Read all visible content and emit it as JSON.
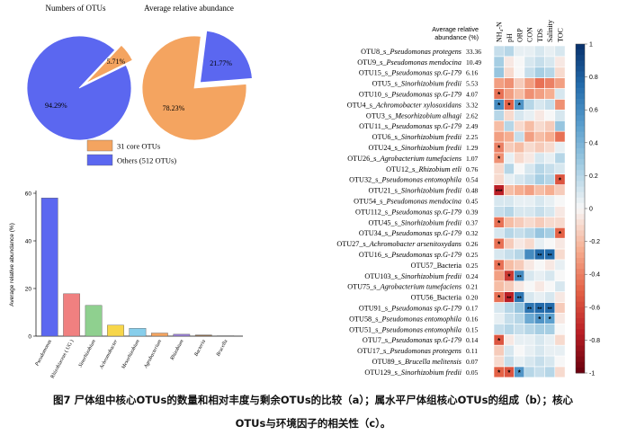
{
  "chart_data": [
    {
      "type": "pie",
      "title": "Numbers of OTUs",
      "slices": [
        {
          "label": "31 core OTUs",
          "value": 5.71,
          "value_label": "5.71%",
          "color": "#F4A460"
        },
        {
          "label": "Others (512 OTUs)",
          "value": 94.29,
          "value_label": "94.29%",
          "color": "#5B67F0"
        }
      ]
    },
    {
      "type": "pie",
      "title": "Average relative abundance",
      "slices": [
        {
          "label": "31 core OTUs",
          "value": 78.23,
          "value_label": "78.23%",
          "color": "#F4A460"
        },
        {
          "label": "Others (512 OTUs)",
          "value": 21.77,
          "value_label": "21.77%",
          "color": "#5B67F0"
        }
      ],
      "legend": [
        "31 core OTUs",
        "Others (512 OTUs)"
      ]
    },
    {
      "type": "bar",
      "ylabel": "Average relative abundance (%)",
      "ylim": [
        0,
        60
      ],
      "yticks": [
        "0",
        "20",
        "40",
        "60"
      ],
      "categories": [
        "Pseudomonas",
        "Rhizobiaceae ( UG )",
        "Sinorhizobium",
        "Achromobacter",
        "Mesorhizobium",
        "Agrobacterium",
        "Rhizobium",
        "Bacteria",
        "Brucella"
      ],
      "values": [
        58.0,
        17.8,
        12.9,
        4.6,
        3.3,
        1.3,
        0.8,
        0.5,
        0.2
      ],
      "colors": [
        "#5B67F0",
        "#F08080",
        "#8FD08F",
        "#F7D64A",
        "#87CEEB",
        "#F4A460",
        "#9A7FD8",
        "#8B6B4A",
        "#CCCCCC"
      ]
    },
    {
      "type": "heatmap",
      "corner_label": [
        "Average relative",
        "abundance (%)"
      ],
      "columns": [
        "NH₄-N",
        "pH",
        "ORP",
        "CON",
        "TDS",
        "Salinity",
        "TOC"
      ],
      "colorbar": {
        "min": -1,
        "max": 1,
        "ticks": [
          "1",
          "0.8",
          "0.6",
          "0.4",
          "0.2",
          "0",
          "-0.2",
          "-0.4",
          "-0.6",
          "-0.8",
          "-1"
        ]
      },
      "rows": [
        {
          "otu": "OTU8_s_",
          "taxon": "Pseudomonas protegens",
          "abund": "33.36",
          "r": [
            0.15,
            0.2,
            0.05,
            0.05,
            0.1,
            0.05,
            0.1
          ],
          "sig": [
            "",
            "",
            "",
            "",
            "",
            "",
            ""
          ]
        },
        {
          "otu": "OTU9_s_",
          "taxon": "Pseudomonas mendocina",
          "abund": "10.49",
          "r": [
            0.25,
            -0.05,
            0.0,
            0.1,
            0.15,
            0.1,
            -0.05
          ],
          "sig": [
            "",
            "",
            "",
            "",
            "",
            "",
            ""
          ]
        },
        {
          "otu": "OTU15_s_",
          "taxon": "Pseudomonas sp.G-179",
          "abund": "6.16",
          "r": [
            0.3,
            -0.1,
            0.0,
            0.15,
            0.25,
            0.2,
            -0.1
          ],
          "sig": [
            "",
            "",
            "",
            "",
            "",
            "",
            ""
          ]
        },
        {
          "otu": "OTU5_s_",
          "taxon": "Sinorhizobium fredii",
          "abund": "5.53",
          "r": [
            -0.3,
            -0.35,
            -0.15,
            -0.3,
            -0.45,
            -0.4,
            -0.3
          ],
          "sig": [
            "",
            "",
            "",
            "",
            "",
            "",
            ""
          ]
        },
        {
          "otu": "OTU10_s_",
          "taxon": "Pseudomonas sp.G-179",
          "abund": "4.07",
          "r": [
            -0.45,
            -0.3,
            -0.2,
            -0.35,
            -0.3,
            -0.25,
            0.1
          ],
          "sig": [
            "*",
            "",
            "",
            "",
            "",
            "",
            ""
          ]
        },
        {
          "otu": "OTU4_s_",
          "taxon": "Achromobacter xylosoxidans",
          "abund": "3.32",
          "r": [
            0.6,
            -0.5,
            0.55,
            0.2,
            0.1,
            0.15,
            -0.35
          ],
          "sig": [
            "*",
            "*",
            "*",
            "",
            "",
            "",
            ""
          ]
        },
        {
          "otu": "OTU3_s_",
          "taxon": "Mesorhizobium alhagi",
          "abund": "2.62",
          "r": [
            0.2,
            -0.1,
            0.1,
            0.05,
            -0.05,
            0.0,
            0.1
          ],
          "sig": [
            "",
            "",
            "",
            "",
            "",
            "",
            ""
          ]
        },
        {
          "otu": "OTU11_s_",
          "taxon": "Pseudomonas sp.G-179",
          "abund": "2.49",
          "r": [
            -0.2,
            0.2,
            -0.1,
            -0.2,
            -0.1,
            -0.15,
            0.3
          ],
          "sig": [
            "",
            "",
            "",
            "",
            "",
            "",
            ""
          ]
        },
        {
          "otu": "OTU6_s_",
          "taxon": "Sinorhizobium fredii",
          "abund": "2.25",
          "r": [
            -0.3,
            -0.25,
            0.15,
            -0.3,
            -0.2,
            -0.25,
            -0.45
          ],
          "sig": [
            "",
            "",
            "",
            "",
            "",
            "",
            ""
          ]
        },
        {
          "otu": "OTU24_s_",
          "taxon": "Sinorhizobium fredii",
          "abund": "1.29",
          "r": [
            -0.4,
            -0.15,
            -0.2,
            -0.1,
            -0.15,
            -0.1,
            0.05
          ],
          "sig": [
            "*",
            "",
            "",
            "",
            "",
            "",
            ""
          ]
        },
        {
          "otu": "OTU26_s_",
          "taxon": "Agrobacterium tumefaciens",
          "abund": "1.07",
          "r": [
            -0.35,
            0.05,
            -0.1,
            -0.05,
            0.1,
            0.05,
            0.2
          ],
          "sig": [
            "*",
            "",
            "",
            "",
            "",
            "",
            ""
          ]
        },
        {
          "otu": "OTU12_s_",
          "taxon": "Rhizobium etli",
          "abund": "0.76",
          "r": [
            -0.1,
            0.2,
            0.0,
            0.1,
            0.2,
            0.15,
            0.1
          ],
          "sig": [
            "",
            "",
            "",
            "",
            "",
            "",
            ""
          ]
        },
        {
          "otu": "OTU32_s_",
          "taxon": "Pseudomonas entomophila",
          "abund": "0.54",
          "r": [
            -0.1,
            0.05,
            0.1,
            0.15,
            0.25,
            0.2,
            -0.55
          ],
          "sig": [
            "",
            "",
            "",
            "",
            "",
            "",
            "*"
          ]
        },
        {
          "otu": "OTU21_s_",
          "taxon": "Sinorhizobium fredii",
          "abund": "0.48",
          "r": [
            -0.75,
            -0.2,
            -0.25,
            -0.3,
            -0.2,
            -0.25,
            -0.15
          ],
          "sig": [
            "***",
            "",
            "",
            "",
            "",
            "",
            ""
          ]
        },
        {
          "otu": "OTU54_s_",
          "taxon": "Pseudomonas mendocina",
          "abund": "0.45",
          "r": [
            0.1,
            0.1,
            0.05,
            0.05,
            0.1,
            0.05,
            0.0
          ],
          "sig": [
            "",
            "",
            "",
            "",
            "",
            "",
            ""
          ]
        },
        {
          "otu": "OTU112_s_",
          "taxon": "Pseudomonas sp.G-179",
          "abund": "0.39",
          "r": [
            0.15,
            0.2,
            0.1,
            0.1,
            0.15,
            0.1,
            -0.05
          ],
          "sig": [
            "",
            "",
            "",
            "",
            "",
            "",
            ""
          ]
        },
        {
          "otu": "OTU45_s_",
          "taxon": "Sinorhizobium fredii",
          "abund": "0.37",
          "r": [
            -0.45,
            -0.2,
            -0.15,
            -0.1,
            -0.15,
            -0.1,
            -0.1
          ],
          "sig": [
            "*",
            "",
            "",
            "",
            "",
            "",
            ""
          ]
        },
        {
          "otu": "OTU34_s_",
          "taxon": "Pseudomonas sp.G-179",
          "abund": "0.32",
          "r": [
            0.1,
            0.2,
            0.15,
            0.2,
            0.3,
            0.25,
            -0.5
          ],
          "sig": [
            "",
            "",
            "",
            "",
            "",
            "",
            "*"
          ]
        },
        {
          "otu": "OTU27_s_",
          "taxon": "Achromobacter arsenitoxydans",
          "abund": "0.26",
          "r": [
            -0.45,
            -0.15,
            -0.05,
            -0.1,
            0.05,
            0.0,
            -0.05
          ],
          "sig": [
            "*",
            "",
            "",
            "",
            "",
            "",
            ""
          ]
        },
        {
          "otu": "OTU16_s_",
          "taxon": "Pseudomonas sp.G-179",
          "abund": "0.25",
          "r": [
            0.1,
            0.15,
            0.2,
            0.6,
            0.75,
            0.75,
            -0.1
          ],
          "sig": [
            "",
            "",
            "",
            "",
            "**",
            "**",
            ""
          ]
        },
        {
          "otu": "OTU57_",
          "taxon": "Bacteria",
          "abund": "0.25",
          "r": [
            -0.45,
            -0.2,
            -0.15,
            -0.05,
            0.0,
            -0.05,
            0.05
          ],
          "sig": [
            "*",
            "",
            "",
            "",
            "",
            "",
            ""
          ]
        },
        {
          "otu": "OTU103_s_",
          "taxon": "Sinorhizobium fredii",
          "abund": "0.24",
          "r": [
            -0.3,
            -0.65,
            0.6,
            0.1,
            0.05,
            0.1,
            0.0
          ],
          "sig": [
            "",
            "*",
            "**",
            "",
            "",
            "",
            ""
          ]
        },
        {
          "otu": "OTU75_s_",
          "taxon": "Agrobacterium tumefaciens",
          "abund": "0.21",
          "r": [
            -0.2,
            -0.15,
            -0.05,
            0.0,
            -0.05,
            0.0,
            0.1
          ],
          "sig": [
            "",
            "",
            "",
            "",
            "",
            "",
            ""
          ]
        },
        {
          "otu": "OTU56_",
          "taxon": "Bacteria",
          "abund": "0.20",
          "r": [
            -0.45,
            -0.75,
            0.7,
            0.1,
            0.05,
            0.1,
            -0.05
          ],
          "sig": [
            "*",
            "**",
            "**",
            "",
            "",
            "",
            ""
          ]
        },
        {
          "otu": "OTU91_s_",
          "taxon": "Pseudomonas sp.G-179",
          "abund": "0.17",
          "r": [
            0.1,
            0.2,
            0.3,
            0.7,
            0.75,
            0.75,
            -0.15
          ],
          "sig": [
            "",
            "",
            "",
            "**",
            "**",
            "**",
            ""
          ]
        },
        {
          "otu": "OTU58_s_",
          "taxon": "Pseudomonas entomophila",
          "abund": "0.16",
          "r": [
            0.05,
            0.15,
            0.2,
            0.45,
            0.55,
            0.5,
            -0.05
          ],
          "sig": [
            "",
            "",
            "",
            "",
            "*",
            "*",
            ""
          ]
        },
        {
          "otu": "OTU51_s_",
          "taxon": "Pseudomonas entomophila",
          "abund": "0.15",
          "r": [
            0.15,
            0.2,
            0.15,
            0.2,
            0.25,
            0.25,
            0.0
          ],
          "sig": [
            "",
            "",
            "",
            "",
            "",
            "",
            ""
          ]
        },
        {
          "otu": "OTU7_s_",
          "taxon": "Pseudomonas sp.G-179",
          "abund": "0.14",
          "r": [
            -0.55,
            -0.05,
            0.05,
            0.05,
            0.1,
            0.05,
            -0.1
          ],
          "sig": [
            "*",
            "",
            "",
            "",
            "",
            "",
            ""
          ]
        },
        {
          "otu": "OTU17_s_",
          "taxon": "Pseudomonas protegens",
          "abund": "0.11",
          "r": [
            -0.15,
            0.1,
            0.0,
            0.05,
            0.1,
            0.05,
            0.05
          ],
          "sig": [
            "",
            "",
            "",
            "",
            "",
            "",
            ""
          ]
        },
        {
          "otu": "OTU89_s_",
          "taxon": "Brucella melitensis",
          "abund": "0.07",
          "r": [
            -0.1,
            0.15,
            0.05,
            0.1,
            0.15,
            0.1,
            0.0
          ],
          "sig": [
            "",
            "",
            "",
            "",
            "",
            "",
            ""
          ]
        },
        {
          "otu": "OTU129_s_",
          "taxon": "Sinorhizobium fredii",
          "abund": "0.05",
          "r": [
            -0.5,
            -0.55,
            0.55,
            0.2,
            0.15,
            0.2,
            -0.1
          ],
          "sig": [
            "*",
            "*",
            "*",
            "",
            "",
            "",
            ""
          ]
        }
      ]
    }
  ],
  "caption": {
    "line1": "图7 尸体组中核心OTUs的数量和相对丰度与剩余OTUs的比较（a）；属水平尸体组核心OTUs的组成（b）；核心",
    "line2": "OTUs与环境因子的相关性（c）。"
  }
}
